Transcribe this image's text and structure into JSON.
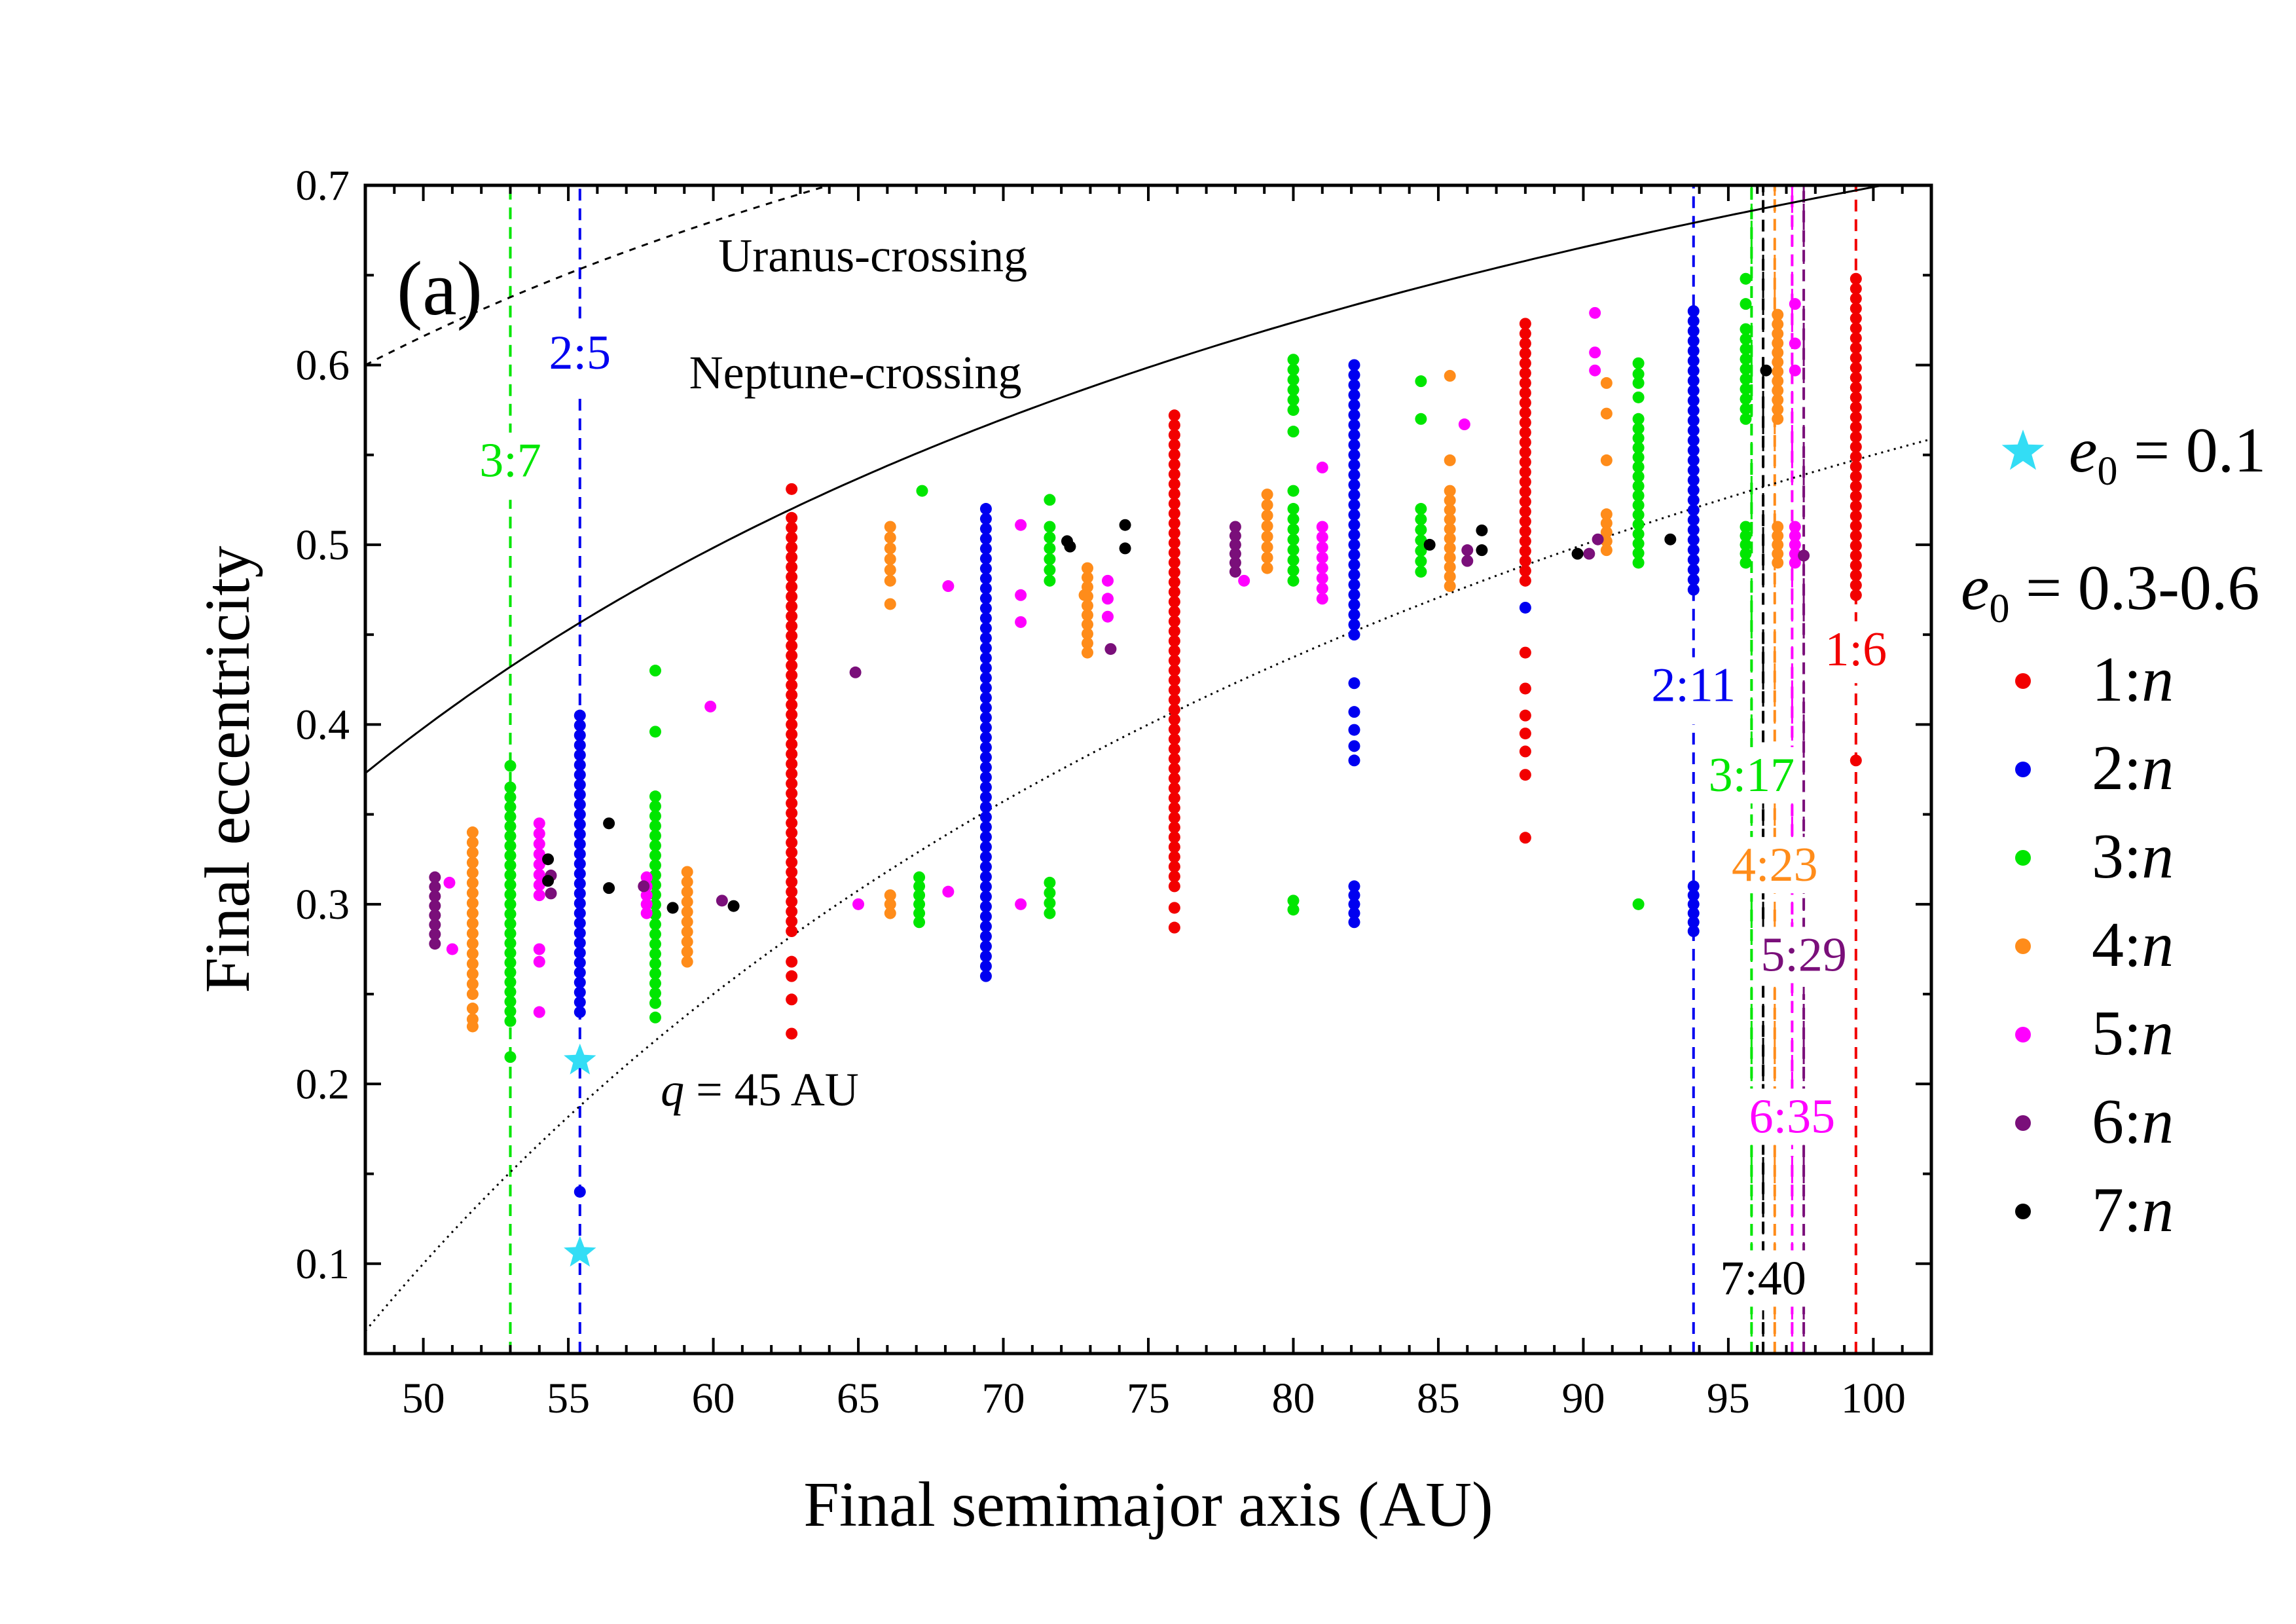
{
  "chart_data": {
    "type": "scatter",
    "panel_label": "(a)",
    "xlabel": "Final semimajor axis (AU)",
    "ylabel": "Final eccentricity",
    "xlim": [
      48,
      102
    ],
    "ylim": [
      0.05,
      0.7
    ],
    "xticks": [
      50,
      55,
      60,
      65,
      70,
      75,
      80,
      85,
      90,
      95,
      100
    ],
    "yticks": [
      0.1,
      0.2,
      0.3,
      0.4,
      0.5,
      0.6,
      0.7
    ],
    "grid": false,
    "legend_position": "right",
    "legend": {
      "star_entry": {
        "symbol": "e",
        "sub": "0",
        "text": " = 0.1",
        "color": "#33DDF5"
      },
      "group_header": {
        "symbol": "e",
        "sub": "0",
        "text": " = 0.3-0.6"
      },
      "items": [
        {
          "num": "1",
          "color": "#F20000"
        },
        {
          "num": "2",
          "color": "#0000F0"
        },
        {
          "num": "3",
          "color": "#00E600"
        },
        {
          "num": "4",
          "color": "#FF8C1A"
        },
        {
          "num": "5",
          "color": "#FF00FF"
        },
        {
          "num": "6",
          "color": "#7A0F7A"
        },
        {
          "num": "7",
          "color": "#000000"
        }
      ],
      "item_suffix": ":n"
    },
    "curves": [
      {
        "style": "dashed",
        "label": "Uranus-crossing",
        "label_x": 65.5,
        "label_y": 0.652
      },
      {
        "style": "solid",
        "label": "Neptune-crossing",
        "label_x": 64.9,
        "label_y": 0.587
      },
      {
        "style": "dotted",
        "label_q": "q",
        "label_rest": " = 45 AU",
        "label_x": 61.6,
        "label_y": 0.188
      }
    ],
    "resonances": [
      {
        "label": "3:7",
        "a": 53.0,
        "color": "#00E600",
        "label_x": 53.0,
        "label_y": 0.538,
        "segments": [
          [
            0.05,
            0.525
          ],
          [
            0.55,
            0.7
          ]
        ]
      },
      {
        "label": "2:5",
        "a": 55.4,
        "color": "#0000F0",
        "label_x": 55.4,
        "label_y": 0.598,
        "segments": [
          [
            0.05,
            0.585
          ],
          [
            0.615,
            0.7
          ]
        ]
      },
      {
        "label": "2:11",
        "a": 93.8,
        "color": "#0000F0",
        "label_x": 93.8,
        "label_y": 0.413,
        "segments": [
          [
            0.05,
            0.4
          ],
          [
            0.425,
            0.7
          ]
        ]
      },
      {
        "label": "1:6",
        "a": 99.4,
        "color": "#F20000",
        "label_x": 99.4,
        "label_y": 0.433,
        "segments": [
          [
            0.05,
            0.423
          ],
          [
            0.445,
            0.7
          ]
        ]
      },
      {
        "label": "3:17",
        "a": 95.8,
        "color": "#00E600",
        "label_x": 95.8,
        "label_y": 0.363,
        "segments": [
          [
            0.05,
            0.35
          ],
          [
            0.375,
            0.7
          ]
        ]
      },
      {
        "label": "4:23",
        "a": 96.6,
        "color": "#FF8C1A",
        "label_x": 96.6,
        "label_y": 0.313,
        "segments": [
          [
            0.05,
            0.3
          ],
          [
            0.325,
            0.7
          ]
        ]
      },
      {
        "label": "5:29",
        "a": 97.6,
        "color": "#7A0F7A",
        "label_x": 97.6,
        "label_y": 0.263,
        "segments": [
          [
            0.05,
            0.25
          ],
          [
            0.275,
            0.7
          ]
        ]
      },
      {
        "label": "6:35",
        "a": 97.2,
        "color": "#FF00FF",
        "label_x": 97.2,
        "label_y": 0.173,
        "segments": [
          [
            0.05,
            0.16
          ],
          [
            0.185,
            0.7
          ]
        ]
      },
      {
        "label": "7:40",
        "a": 96.2,
        "color": "#000000",
        "label_x": 96.2,
        "label_y": 0.083,
        "segments": [
          [
            0.05,
            0.07
          ],
          [
            0.095,
            0.7
          ]
        ]
      }
    ],
    "resonance_extra": [
      {
        "a": 95.8,
        "color": "#00E600"
      },
      {
        "a": 96.2,
        "color": "#000000"
      },
      {
        "a": 96.6,
        "color": "#FF8C1A"
      },
      {
        "a": 97.2,
        "color": "#FF00FF"
      },
      {
        "a": 97.6,
        "color": "#7A0F7A"
      }
    ],
    "stars": [
      {
        "a": 55.4,
        "e": 0.213
      },
      {
        "a": 55.4,
        "e": 0.106
      }
    ],
    "series": [
      {
        "name": "1:n",
        "color": "#F20000",
        "columns": [
          {
            "a": 62.7,
            "lo": 0.285,
            "hi": 0.515,
            "extra": [
              0.531,
              0.228,
              0.247,
              0.26,
              0.268
            ]
          },
          {
            "a": 75.9,
            "lo": 0.31,
            "hi": 0.572,
            "extra": [
              0.298,
              0.287
            ]
          },
          {
            "a": 88.0,
            "lo": 0.48,
            "hi": 0.623,
            "extra": [
              0.44,
              0.42,
              0.405,
              0.395,
              0.385,
              0.372,
              0.337
            ]
          },
          {
            "a": 99.4,
            "lo": 0.472,
            "hi": 0.648,
            "extra": [
              0.38
            ]
          }
        ],
        "points": []
      },
      {
        "name": "2:n",
        "color": "#0000F0",
        "columns": [
          {
            "a": 55.4,
            "lo": 0.24,
            "hi": 0.405,
            "extra": [
              0.14
            ]
          },
          {
            "a": 69.4,
            "lo": 0.26,
            "hi": 0.52,
            "extra": []
          },
          {
            "a": 82.1,
            "lo": 0.45,
            "hi": 0.6,
            "extra": [
              0.423,
              0.407,
              0.397,
              0.388,
              0.38
            ]
          },
          {
            "a": 82.1,
            "lo": 0.29,
            "hi": 0.31,
            "extra": []
          },
          {
            "a": 93.8,
            "lo": 0.475,
            "hi": 0.63,
            "extra": []
          },
          {
            "a": 93.8,
            "lo": 0.285,
            "hi": 0.31,
            "extra": []
          }
        ],
        "points": [
          [
            88.0,
            0.465
          ]
        ]
      },
      {
        "name": "3:n",
        "color": "#00E600",
        "columns": [
          {
            "a": 53.0,
            "lo": 0.235,
            "hi": 0.365,
            "extra": [
              0.377,
              0.215
            ]
          },
          {
            "a": 58.0,
            "lo": 0.245,
            "hi": 0.36,
            "extra": [
              0.43,
              0.396,
              0.237
            ]
          },
          {
            "a": 67.1,
            "lo": 0.29,
            "hi": 0.315,
            "extra": []
          },
          {
            "a": 71.6,
            "lo": 0.295,
            "hi": 0.312,
            "extra": []
          },
          {
            "a": 71.6,
            "lo": 0.48,
            "hi": 0.51,
            "extra": [
              0.525
            ]
          },
          {
            "a": 80.0,
            "lo": 0.48,
            "hi": 0.52,
            "extra": [
              0.53,
              0.563
            ]
          },
          {
            "a": 80.0,
            "lo": 0.575,
            "hi": 0.603,
            "extra": []
          },
          {
            "a": 84.4,
            "lo": 0.485,
            "hi": 0.52,
            "extra": [
              0.57,
              0.591
            ]
          },
          {
            "a": 91.9,
            "lo": 0.49,
            "hi": 0.57,
            "extra": [
              0.582,
              0.595,
              0.601
            ]
          },
          {
            "a": 95.6,
            "lo": 0.49,
            "hi": 0.51,
            "extra": []
          },
          {
            "a": 95.6,
            "lo": 0.57,
            "hi": 0.62,
            "extra": [
              0.634,
              0.648
            ]
          }
        ],
        "points": [
          [
            80.0,
            0.297
          ],
          [
            80.0,
            0.302
          ],
          [
            91.9,
            0.3
          ],
          [
            67.2,
            0.53
          ],
          [
            91.9,
            0.59
          ]
        ]
      },
      {
        "name": "4:n",
        "color": "#FF8C1A",
        "columns": [
          {
            "a": 51.7,
            "lo": 0.25,
            "hi": 0.34,
            "extra": [
              0.242,
              0.236,
              0.232
            ]
          },
          {
            "a": 59.1,
            "lo": 0.268,
            "hi": 0.318,
            "extra": []
          },
          {
            "a": 66.1,
            "lo": 0.48,
            "hi": 0.51,
            "extra": [
              0.467
            ]
          },
          {
            "a": 66.1,
            "lo": 0.295,
            "hi": 0.305,
            "extra": []
          },
          {
            "a": 72.9,
            "lo": 0.44,
            "hi": 0.487,
            "extra": []
          },
          {
            "a": 79.1,
            "lo": 0.487,
            "hi": 0.528,
            "extra": []
          },
          {
            "a": 85.4,
            "lo": 0.477,
            "hi": 0.53,
            "extra": [
              0.547,
              0.594
            ]
          },
          {
            "a": 90.8,
            "lo": 0.497,
            "hi": 0.517,
            "extra": [
              0.547,
              0.573,
              0.59
            ]
          },
          {
            "a": 96.7,
            "lo": 0.49,
            "hi": 0.51,
            "extra": []
          },
          {
            "a": 96.7,
            "lo": 0.57,
            "hi": 0.628,
            "extra": []
          }
        ],
        "points": [
          [
            72.8,
            0.472
          ]
        ]
      },
      {
        "name": "5:n",
        "color": "#FF00FF",
        "columns": [
          {
            "a": 54.0,
            "lo": 0.305,
            "hi": 0.345,
            "extra": [
              0.275,
              0.268,
              0.24
            ]
          },
          {
            "a": 57.7,
            "lo": 0.295,
            "hi": 0.315,
            "extra": []
          },
          {
            "a": 81.0,
            "lo": 0.47,
            "hi": 0.51,
            "extra": [
              0.543
            ]
          },
          {
            "a": 97.3,
            "lo": 0.49,
            "hi": 0.51,
            "extra": [
              0.597,
              0.612,
              0.634
            ]
          }
        ],
        "points": [
          [
            50.9,
            0.312
          ],
          [
            51.0,
            0.275
          ],
          [
            59.9,
            0.41
          ],
          [
            65.0,
            0.3
          ],
          [
            68.1,
            0.477
          ],
          [
            68.1,
            0.307
          ],
          [
            70.6,
            0.511
          ],
          [
            70.6,
            0.472
          ],
          [
            70.6,
            0.457
          ],
          [
            70.6,
            0.3
          ],
          [
            73.6,
            0.48
          ],
          [
            73.6,
            0.47
          ],
          [
            73.6,
            0.46
          ],
          [
            78.3,
            0.48
          ],
          [
            85.9,
            0.567
          ],
          [
            90.4,
            0.629
          ],
          [
            90.4,
            0.607
          ],
          [
            90.4,
            0.597
          ]
        ]
      },
      {
        "name": "6:n",
        "color": "#7A0F7A",
        "columns": [
          {
            "a": 50.4,
            "lo": 0.278,
            "hi": 0.315,
            "extra": []
          },
          {
            "a": 78.0,
            "lo": 0.49,
            "hi": 0.51,
            "extra": []
          }
        ],
        "points": [
          [
            54.4,
            0.316
          ],
          [
            54.4,
            0.306
          ],
          [
            57.6,
            0.31
          ],
          [
            60.3,
            0.302
          ],
          [
            64.9,
            0.429
          ],
          [
            73.7,
            0.442
          ],
          [
            86.0,
            0.497
          ],
          [
            86.0,
            0.491
          ],
          [
            90.2,
            0.495
          ],
          [
            90.5,
            0.503
          ],
          [
            97.6,
            0.494
          ],
          [
            78.0,
            0.485
          ]
        ]
      },
      {
        "name": "7:n",
        "color": "#000000",
        "columns": [],
        "points": [
          [
            54.3,
            0.325
          ],
          [
            54.3,
            0.313
          ],
          [
            56.4,
            0.345
          ],
          [
            56.4,
            0.309
          ],
          [
            58.6,
            0.298
          ],
          [
            60.7,
            0.299
          ],
          [
            72.2,
            0.502
          ],
          [
            72.3,
            0.499
          ],
          [
            74.2,
            0.511
          ],
          [
            74.2,
            0.498
          ],
          [
            84.7,
            0.5
          ],
          [
            86.5,
            0.508
          ],
          [
            86.5,
            0.497
          ],
          [
            89.8,
            0.495
          ],
          [
            93.0,
            0.503
          ],
          [
            96.3,
            0.597
          ]
        ]
      }
    ]
  }
}
